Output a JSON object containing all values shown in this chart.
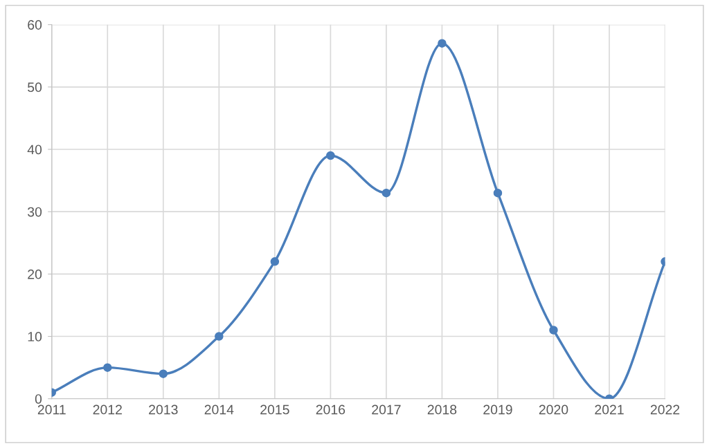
{
  "chart_data": {
    "type": "line",
    "categories": [
      "2011",
      "2012",
      "2013",
      "2014",
      "2015",
      "2016",
      "2017",
      "2018",
      "2019",
      "2020",
      "2021",
      "2022"
    ],
    "series": [
      {
        "color": "#4a7ebb",
        "values": [
          1,
          5,
          4,
          10,
          22,
          39,
          33,
          57,
          33,
          11,
          0,
          22
        ]
      }
    ],
    "ylim": [
      0,
      60
    ],
    "yticks": [
      0,
      10,
      20,
      30,
      40,
      50,
      60
    ],
    "grid": true,
    "legend": false,
    "marker": "circle",
    "line_style": "solid"
  }
}
